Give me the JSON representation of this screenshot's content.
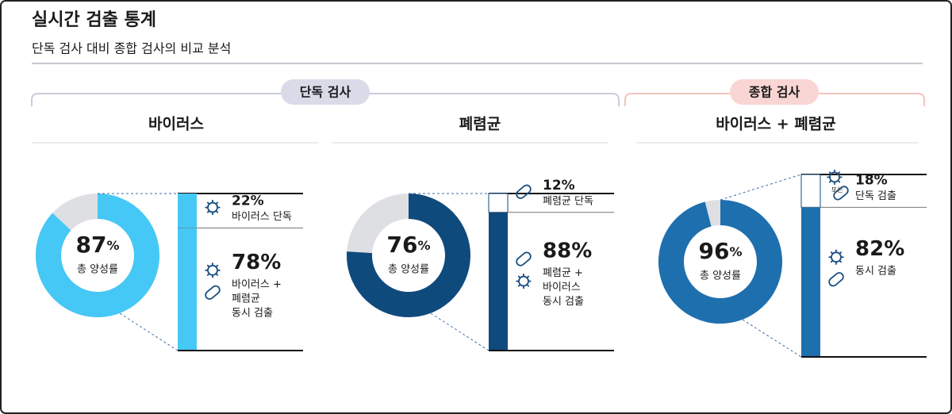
{
  "header": {
    "title": "실시간 검출 통계",
    "subtitle": "단독 검사 대비 종합 검사의 비교 분석"
  },
  "groups": [
    {
      "label": "단독 검사",
      "color": "#d9dbe8",
      "line": "#c9ccda"
    },
    {
      "label": "종합 검사",
      "color": "#f9d6d3",
      "line": "#f3c4be"
    }
  ],
  "panels": [
    {
      "title": "바이러스",
      "total": 87,
      "unit": "%",
      "total_label": "총 양성률",
      "color": "#45c8f5",
      "text_color": "#45c8f5",
      "items": [
        {
          "value": 22,
          "unit": "%",
          "label": [
            "바이러스 단독"
          ],
          "color": "#45c8f5"
        },
        {
          "value": 78,
          "unit": "%",
          "label": [
            "바이러스 +",
            "폐렴균",
            "동시 검출"
          ],
          "color": "#45c8f5"
        }
      ]
    },
    {
      "title": "폐렴균",
      "total": 76,
      "unit": "%",
      "total_label": "총 양성률",
      "color": "#0f4a7d",
      "text_color": "#0f4a7d",
      "items": [
        {
          "value": 12,
          "unit": "%",
          "label": [
            "폐렴균 단독"
          ],
          "color": "#ffffff"
        },
        {
          "value": 88,
          "unit": "%",
          "label": [
            "폐렴균 +",
            "바이러스",
            "동시 검출"
          ],
          "color": "#0f4a7d"
        }
      ]
    },
    {
      "title": "바이러스 + 폐렴균",
      "total": 96,
      "unit": "%",
      "total_label": "총 양성률",
      "color": "#1e6fae",
      "text_color": "#0f4a7d",
      "items": [
        {
          "value": 18,
          "unit": "%",
          "label": [
            "단독 검출"
          ],
          "color": "#ffffff",
          "icon_note": "또는"
        },
        {
          "value": 82,
          "unit": "%",
          "label": [
            "동시 검출"
          ],
          "color": "#1e6fae"
        }
      ]
    }
  ]
}
